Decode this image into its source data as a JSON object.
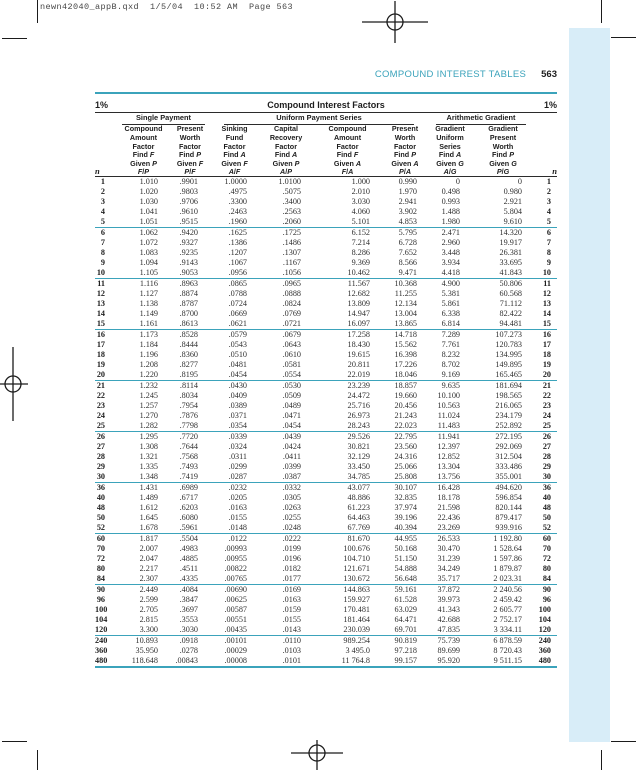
{
  "page": {
    "print_slug": "newn42040_appB.qxd  1/5/04  10:52 AM  Page 563",
    "running_head": "COMPOUND INTEREST TABLES",
    "page_number": "563",
    "rate_left": "1%",
    "rate_right": "1%",
    "table_title": "Compound Interest Factors"
  },
  "colors": {
    "teal": "#3ba3bb",
    "sidebar_blue": "#d8edf8",
    "text": "#2e2e2e"
  },
  "table": {
    "n_label": "n",
    "group_headers": [
      {
        "label": "Single Payment",
        "span": 2
      },
      {
        "label": "Uniform Payment Series",
        "span": 4
      },
      {
        "label": "Arithmetic Gradient",
        "span": 2
      }
    ],
    "columns": [
      {
        "title": [
          "Compound",
          "Amount",
          "Factor"
        ],
        "find": [
          "Find F",
          "Given P",
          "F/P"
        ]
      },
      {
        "title": [
          "Present",
          "Worth",
          "Factor"
        ],
        "find": [
          "Find P",
          "Given F",
          "P/F"
        ]
      },
      {
        "title": [
          "Sinking",
          "Fund",
          "Factor"
        ],
        "find": [
          "Find A",
          "Given F",
          "A/F"
        ]
      },
      {
        "title": [
          "Capital",
          "Recovery",
          "Factor"
        ],
        "find": [
          "Find A",
          "Given P",
          "A/P"
        ]
      },
      {
        "title": [
          "Compound",
          "Amount",
          "Factor"
        ],
        "find": [
          "Find F",
          "Given A",
          "F/A"
        ]
      },
      {
        "title": [
          "Present",
          "Worth",
          "Factor"
        ],
        "find": [
          "Find P",
          "Given A",
          "P/A"
        ]
      },
      {
        "title": [
          "Gradient",
          "Uniform",
          "Series"
        ],
        "find": [
          "Find A",
          "Given G",
          "A/G"
        ]
      },
      {
        "title": [
          "Gradient",
          "Present",
          "Worth"
        ],
        "find": [
          "Find P",
          "Given G",
          "P/G"
        ]
      }
    ],
    "group_breaks": [
      "5",
      "10",
      "15",
      "20",
      "25",
      "30",
      "52",
      "84",
      "120"
    ],
    "rows": [
      [
        "1",
        "1.010",
        ".9901",
        "1.0000",
        "1.0100",
        "1.000",
        "0.990",
        "0",
        "0"
      ],
      [
        "2",
        "1.020",
        ".9803",
        ".4975",
        ".5075",
        "2.010",
        "1.970",
        "0.498",
        "0.980"
      ],
      [
        "3",
        "1.030",
        ".9706",
        ".3300",
        ".3400",
        "3.030",
        "2.941",
        "0.993",
        "2.921"
      ],
      [
        "4",
        "1.041",
        ".9610",
        ".2463",
        ".2563",
        "4.060",
        "3.902",
        "1.488",
        "5.804"
      ],
      [
        "5",
        "1.051",
        ".9515",
        ".1960",
        ".2060",
        "5.101",
        "4.853",
        "1.980",
        "9.610"
      ],
      [
        "6",
        "1.062",
        ".9420",
        ".1625",
        ".1725",
        "6.152",
        "5.795",
        "2.471",
        "14.320"
      ],
      [
        "7",
        "1.072",
        ".9327",
        ".1386",
        ".1486",
        "7.214",
        "6.728",
        "2.960",
        "19.917"
      ],
      [
        "8",
        "1.083",
        ".9235",
        ".1207",
        ".1307",
        "8.286",
        "7.652",
        "3.448",
        "26.381"
      ],
      [
        "9",
        "1.094",
        ".9143",
        ".1067",
        ".1167",
        "9.369",
        "8.566",
        "3.934",
        "33.695"
      ],
      [
        "10",
        "1.105",
        ".9053",
        ".0956",
        ".1056",
        "10.462",
        "9.471",
        "4.418",
        "41.843"
      ],
      [
        "11",
        "1.116",
        ".8963",
        ".0865",
        ".0965",
        "11.567",
        "10.368",
        "4.900",
        "50.806"
      ],
      [
        "12",
        "1.127",
        ".8874",
        ".0788",
        ".0888",
        "12.682",
        "11.255",
        "5.381",
        "60.568"
      ],
      [
        "13",
        "1.138",
        ".8787",
        ".0724",
        ".0824",
        "13.809",
        "12.134",
        "5.861",
        "71.112"
      ],
      [
        "14",
        "1.149",
        ".8700",
        ".0669",
        ".0769",
        "14.947",
        "13.004",
        "6.338",
        "82.422"
      ],
      [
        "15",
        "1.161",
        ".8613",
        ".0621",
        ".0721",
        "16.097",
        "13.865",
        "6.814",
        "94.481"
      ],
      [
        "16",
        "1.173",
        ".8528",
        ".0579",
        ".0679",
        "17.258",
        "14.718",
        "7.289",
        "107.273"
      ],
      [
        "17",
        "1.184",
        ".8444",
        ".0543",
        ".0643",
        "18.430",
        "15.562",
        "7.761",
        "120.783"
      ],
      [
        "18",
        "1.196",
        ".8360",
        ".0510",
        ".0610",
        "19.615",
        "16.398",
        "8.232",
        "134.995"
      ],
      [
        "19",
        "1.208",
        ".8277",
        ".0481",
        ".0581",
        "20.811",
        "17.226",
        "8.702",
        "149.895"
      ],
      [
        "20",
        "1.220",
        ".8195",
        ".0454",
        ".0554",
        "22.019",
        "18.046",
        "9.169",
        "165.465"
      ],
      [
        "21",
        "1.232",
        ".8114",
        ".0430",
        ".0530",
        "23.239",
        "18.857",
        "9.635",
        "181.694"
      ],
      [
        "22",
        "1.245",
        ".8034",
        ".0409",
        ".0509",
        "24.472",
        "19.660",
        "10.100",
        "198.565"
      ],
      [
        "23",
        "1.257",
        ".7954",
        ".0389",
        ".0489",
        "25.716",
        "20.456",
        "10.563",
        "216.065"
      ],
      [
        "24",
        "1.270",
        ".7876",
        ".0371",
        ".0471",
        "26.973",
        "21.243",
        "11.024",
        "234.179"
      ],
      [
        "25",
        "1.282",
        ".7798",
        ".0354",
        ".0454",
        "28.243",
        "22.023",
        "11.483",
        "252.892"
      ],
      [
        "26",
        "1.295",
        ".7720",
        ".0339",
        ".0439",
        "29.526",
        "22.795",
        "11.941",
        "272.195"
      ],
      [
        "27",
        "1.308",
        ".7644",
        ".0324",
        ".0424",
        "30.821",
        "23.560",
        "12.397",
        "292.069"
      ],
      [
        "28",
        "1.321",
        ".7568",
        ".0311",
        ".0411",
        "32.129",
        "24.316",
        "12.852",
        "312.504"
      ],
      [
        "29",
        "1.335",
        ".7493",
        ".0299",
        ".0399",
        "33.450",
        "25.066",
        "13.304",
        "333.486"
      ],
      [
        "30",
        "1.348",
        ".7419",
        ".0287",
        ".0387",
        "34.785",
        "25.808",
        "13.756",
        "355.001"
      ],
      [
        "36",
        "1.431",
        ".6989",
        ".0232",
        ".0332",
        "43.077",
        "30.107",
        "16.428",
        "494.620"
      ],
      [
        "40",
        "1.489",
        ".6717",
        ".0205",
        ".0305",
        "48.886",
        "32.835",
        "18.178",
        "596.854"
      ],
      [
        "48",
        "1.612",
        ".6203",
        ".0163",
        ".0263",
        "61.223",
        "37.974",
        "21.598",
        "820.144"
      ],
      [
        "50",
        "1.645",
        ".6080",
        ".0155",
        ".0255",
        "64.463",
        "39.196",
        "22.436",
        "879.417"
      ],
      [
        "52",
        "1.678",
        ".5961",
        ".0148",
        ".0248",
        "67.769",
        "40.394",
        "23.269",
        "939.916"
      ],
      [
        "60",
        "1.817",
        ".5504",
        ".0122",
        ".0222",
        "81.670",
        "44.955",
        "26.533",
        "1 192.80"
      ],
      [
        "70",
        "2.007",
        ".4983",
        ".00993",
        ".0199",
        "100.676",
        "50.168",
        "30.470",
        "1 528.64"
      ],
      [
        "72",
        "2.047",
        ".4885",
        ".00955",
        ".0196",
        "104.710",
        "51.150",
        "31.239",
        "1 597.86"
      ],
      [
        "80",
        "2.217",
        ".4511",
        ".00822",
        ".0182",
        "121.671",
        "54.888",
        "34.249",
        "1 879.87"
      ],
      [
        "84",
        "2.307",
        ".4335",
        ".00765",
        ".0177",
        "130.672",
        "56.648",
        "35.717",
        "2 023.31"
      ],
      [
        "90",
        "2.449",
        ".4084",
        ".00690",
        ".0169",
        "144.863",
        "59.161",
        "37.872",
        "2 240.56"
      ],
      [
        "96",
        "2.599",
        ".3847",
        ".00625",
        ".0163",
        "159.927",
        "61.528",
        "39.973",
        "2 459.42"
      ],
      [
        "100",
        "2.705",
        ".3697",
        ".00587",
        ".0159",
        "170.481",
        "63.029",
        "41.343",
        "2 605.77"
      ],
      [
        "104",
        "2.815",
        ".3553",
        ".00551",
        ".0155",
        "181.464",
        "64.471",
        "42.688",
        "2 752.17"
      ],
      [
        "120",
        "3.300",
        ".3030",
        ".00435",
        ".0143",
        "230.039",
        "69.701",
        "47.835",
        "3 334.11"
      ],
      [
        "240",
        "10.893",
        ".0918",
        ".00101",
        ".0110",
        "989.254",
        "90.819",
        "75.739",
        "6 878.59"
      ],
      [
        "360",
        "35.950",
        ".0278",
        ".00029",
        ".0103",
        "3 495.0",
        "97.218",
        "89.699",
        "8 720.43"
      ],
      [
        "480",
        "118.648",
        ".00843",
        ".00008",
        ".0101",
        "11 764.8",
        "99.157",
        "95.920",
        "9 511.15"
      ]
    ]
  }
}
